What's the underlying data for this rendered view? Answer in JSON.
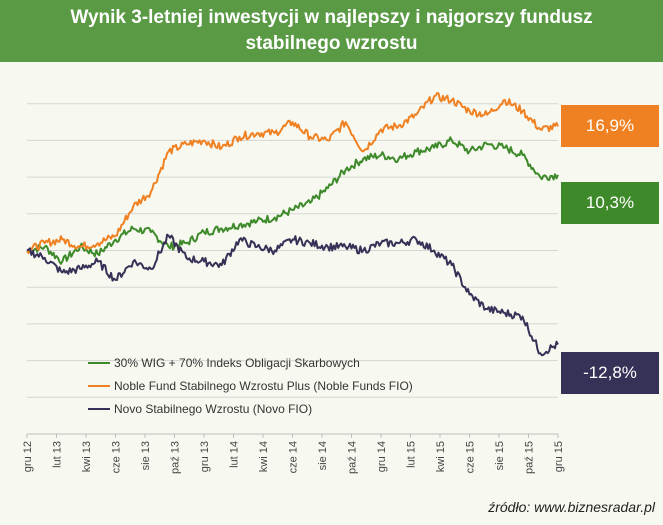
{
  "title": {
    "line1": "Wynik 3-letniej inwestycji w najlepszy i najgorszy fundusz",
    "line2": "stabilnego wzrostu"
  },
  "source": "źródło: www.biznesradar.pl",
  "colors": {
    "title_bg": "#5a9a45",
    "green": "#3e8a2b",
    "orange": "#f08122",
    "navy": "#363157",
    "grid": "#d5d5d5"
  },
  "chart_data": {
    "type": "line",
    "title": "Wynik 3-letniej inwestycji w najlepszy i najgorszy fundusz stabilnego wzrostu",
    "xlabel": "",
    "ylabel": "",
    "x_ticks": [
      "gru 12",
      "lut 13",
      "kwi 13",
      "cze 13",
      "sie 13",
      "paź 13",
      "gru 13",
      "lut 14",
      "kwi 14",
      "cze 14",
      "sie 14",
      "paź 14",
      "gru 14",
      "lut 15",
      "kwi 15",
      "cze 15",
      "sie 15",
      "paź 15",
      "gru 15"
    ],
    "ylim": [
      -25,
      25
    ],
    "y_ticks": [
      -20,
      -15,
      -10,
      -5,
      0,
      5,
      10,
      15,
      20
    ],
    "y_tick_labels_visible": false,
    "grid": "horizontal",
    "legend": "bottom-left",
    "series": [
      {
        "name": "30% WIG + 70% Indeks Obligacji Skarbowych",
        "color_key": "green",
        "end_label": "10,3%",
        "values": [
          0,
          0.5,
          -1.5,
          0.5,
          -0.5,
          1.5,
          3.0,
          2.5,
          0.5,
          1.0,
          2.5,
          3.0,
          3.5,
          4.0,
          4.5,
          5.5,
          6.5,
          8.5,
          11.0,
          12.5,
          13.0,
          12.5,
          13.5,
          14.0,
          15.0,
          13.5,
          14.5,
          14.0,
          13.0,
          10.0,
          10.3
        ]
      },
      {
        "name": "Noble Fund Stabilnego Wzrostu Plus (Noble Funds FIO)",
        "color_key": "orange",
        "end_label": "16,9%",
        "values": [
          0,
          1.0,
          1.5,
          0.5,
          1.0,
          2.0,
          6.0,
          8.0,
          13.5,
          14.5,
          15.0,
          14.0,
          15.5,
          16.0,
          16.0,
          17.5,
          15.5,
          15.0,
          17.5,
          13.5,
          16.5,
          17.0,
          18.5,
          21.0,
          20.5,
          19.0,
          18.5,
          20.5,
          19.0,
          16.5,
          16.9
        ]
      },
      {
        "name": "Novo Stabilnego Wzrostu (Novo FIO)",
        "color_key": "navy",
        "end_label": "-12,8%",
        "values": [
          0,
          -1.0,
          -3.0,
          -2.5,
          -1.5,
          -4.0,
          -1.5,
          -2.5,
          2.0,
          -1.0,
          -1.5,
          -2.0,
          1.5,
          0.5,
          0.0,
          1.5,
          1.0,
          0.5,
          0.5,
          0.0,
          1.0,
          1.0,
          1.5,
          0.0,
          -2.0,
          -6.0,
          -8.0,
          -8.5,
          -9.0,
          -14.0,
          -12.8
        ]
      }
    ]
  }
}
